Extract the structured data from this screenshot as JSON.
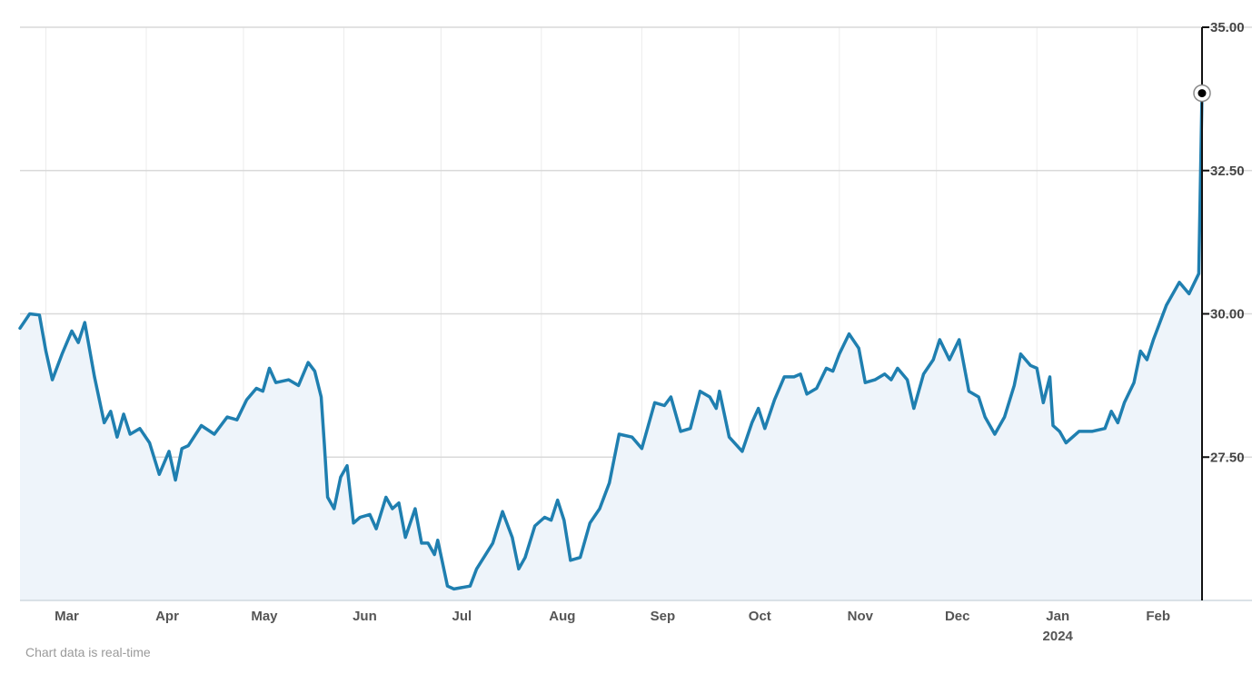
{
  "chart_data": {
    "type": "area",
    "title": "",
    "xlabel": "",
    "ylabel": "",
    "ylim": [
      25,
      35
    ],
    "xlim": [
      "2023-02-21",
      "2024-02-21"
    ],
    "grid": true,
    "y_axis_position": "right",
    "y_ticks": [
      {
        "value": 27.5,
        "label": "27.50"
      },
      {
        "value": 30,
        "label": "30.00"
      },
      {
        "value": 32.5,
        "label": "32.50"
      },
      {
        "value": 35,
        "label": "35.00"
      }
    ],
    "x_ticks": [
      {
        "date": "2023-03-01",
        "label": "Mar",
        "sublabel": ""
      },
      {
        "date": "2023-04-01",
        "label": "Apr",
        "sublabel": ""
      },
      {
        "date": "2023-05-01",
        "label": "May",
        "sublabel": ""
      },
      {
        "date": "2023-06-01",
        "label": "Jun",
        "sublabel": ""
      },
      {
        "date": "2023-07-01",
        "label": "Jul",
        "sublabel": ""
      },
      {
        "date": "2023-08-01",
        "label": "Aug",
        "sublabel": ""
      },
      {
        "date": "2023-09-01",
        "label": "Sep",
        "sublabel": ""
      },
      {
        "date": "2023-10-01",
        "label": "Oct",
        "sublabel": ""
      },
      {
        "date": "2023-11-01",
        "label": "Nov",
        "sublabel": ""
      },
      {
        "date": "2023-12-01",
        "label": "Dec",
        "sublabel": ""
      },
      {
        "date": "2024-01-01",
        "label": "Jan",
        "sublabel": "2024"
      },
      {
        "date": "2024-02-01",
        "label": "Feb",
        "sublabel": ""
      }
    ],
    "series": [
      {
        "color": "#1f7fb0",
        "fill": "#eef4fa",
        "points": [
          [
            "2023-02-21",
            29.75
          ],
          [
            "2023-02-24",
            30.0
          ],
          [
            "2023-02-27",
            29.98
          ],
          [
            "2023-03-01",
            29.35
          ],
          [
            "2023-03-03",
            28.85
          ],
          [
            "2023-03-06",
            29.3
          ],
          [
            "2023-03-09",
            29.7
          ],
          [
            "2023-03-11",
            29.5
          ],
          [
            "2023-03-13",
            29.85
          ],
          [
            "2023-03-16",
            28.9
          ],
          [
            "2023-03-19",
            28.1
          ],
          [
            "2023-03-21",
            28.3
          ],
          [
            "2023-03-23",
            27.85
          ],
          [
            "2023-03-25",
            28.25
          ],
          [
            "2023-03-27",
            27.9
          ],
          [
            "2023-03-30",
            28.0
          ],
          [
            "2023-04-02",
            27.75
          ],
          [
            "2023-04-05",
            27.2
          ],
          [
            "2023-04-08",
            27.6
          ],
          [
            "2023-04-10",
            27.1
          ],
          [
            "2023-04-12",
            27.65
          ],
          [
            "2023-04-14",
            27.7
          ],
          [
            "2023-04-18",
            28.05
          ],
          [
            "2023-04-22",
            27.9
          ],
          [
            "2023-04-26",
            28.2
          ],
          [
            "2023-04-29",
            28.15
          ],
          [
            "2023-05-02",
            28.5
          ],
          [
            "2023-05-05",
            28.7
          ],
          [
            "2023-05-07",
            28.65
          ],
          [
            "2023-05-09",
            29.05
          ],
          [
            "2023-05-11",
            28.8
          ],
          [
            "2023-05-15",
            28.85
          ],
          [
            "2023-05-18",
            28.75
          ],
          [
            "2023-05-21",
            29.15
          ],
          [
            "2023-05-23",
            29.0
          ],
          [
            "2023-05-25",
            28.55
          ],
          [
            "2023-05-26",
            27.7
          ],
          [
            "2023-05-27",
            26.8
          ],
          [
            "2023-05-29",
            26.6
          ],
          [
            "2023-05-31",
            27.15
          ],
          [
            "2023-06-02",
            27.35
          ],
          [
            "2023-06-04",
            26.35
          ],
          [
            "2023-06-06",
            26.45
          ],
          [
            "2023-06-09",
            26.5
          ],
          [
            "2023-06-11",
            26.25
          ],
          [
            "2023-06-14",
            26.8
          ],
          [
            "2023-06-16",
            26.6
          ],
          [
            "2023-06-18",
            26.7
          ],
          [
            "2023-06-20",
            26.1
          ],
          [
            "2023-06-23",
            26.6
          ],
          [
            "2023-06-25",
            26.0
          ],
          [
            "2023-06-27",
            26.0
          ],
          [
            "2023-06-29",
            25.8
          ],
          [
            "2023-06-30",
            26.05
          ],
          [
            "2023-07-03",
            25.25
          ],
          [
            "2023-07-05",
            25.2
          ],
          [
            "2023-07-10",
            25.25
          ],
          [
            "2023-07-12",
            25.55
          ],
          [
            "2023-07-17",
            26.0
          ],
          [
            "2023-07-20",
            26.55
          ],
          [
            "2023-07-23",
            26.1
          ],
          [
            "2023-07-25",
            25.55
          ],
          [
            "2023-07-27",
            25.75
          ],
          [
            "2023-07-30",
            26.3
          ],
          [
            "2023-08-02",
            26.45
          ],
          [
            "2023-08-04",
            26.4
          ],
          [
            "2023-08-06",
            26.75
          ],
          [
            "2023-08-08",
            26.4
          ],
          [
            "2023-08-10",
            25.7
          ],
          [
            "2023-08-13",
            25.75
          ],
          [
            "2023-08-16",
            26.35
          ],
          [
            "2023-08-19",
            26.6
          ],
          [
            "2023-08-22",
            27.05
          ],
          [
            "2023-08-25",
            27.9
          ],
          [
            "2023-08-29",
            27.85
          ],
          [
            "2023-09-01",
            27.65
          ],
          [
            "2023-09-05",
            28.45
          ],
          [
            "2023-09-08",
            28.4
          ],
          [
            "2023-09-10",
            28.55
          ],
          [
            "2023-09-13",
            27.95
          ],
          [
            "2023-09-16",
            28.0
          ],
          [
            "2023-09-19",
            28.65
          ],
          [
            "2023-09-22",
            28.55
          ],
          [
            "2023-09-24",
            28.35
          ],
          [
            "2023-09-25",
            28.65
          ],
          [
            "2023-09-28",
            27.85
          ],
          [
            "2023-10-02",
            27.6
          ],
          [
            "2023-10-05",
            28.1
          ],
          [
            "2023-10-07",
            28.35
          ],
          [
            "2023-10-09",
            28.0
          ],
          [
            "2023-10-12",
            28.5
          ],
          [
            "2023-10-15",
            28.9
          ],
          [
            "2023-10-18",
            28.9
          ],
          [
            "2023-10-20",
            28.95
          ],
          [
            "2023-10-22",
            28.6
          ],
          [
            "2023-10-25",
            28.7
          ],
          [
            "2023-10-28",
            29.05
          ],
          [
            "2023-10-30",
            29.0
          ],
          [
            "2023-11-01",
            29.3
          ],
          [
            "2023-11-04",
            29.65
          ],
          [
            "2023-11-07",
            29.4
          ],
          [
            "2023-11-09",
            28.8
          ],
          [
            "2023-11-12",
            28.85
          ],
          [
            "2023-11-15",
            28.95
          ],
          [
            "2023-11-17",
            28.85
          ],
          [
            "2023-11-19",
            29.05
          ],
          [
            "2023-11-22",
            28.85
          ],
          [
            "2023-11-24",
            28.35
          ],
          [
            "2023-11-27",
            28.95
          ],
          [
            "2023-11-30",
            29.2
          ],
          [
            "2023-12-02",
            29.55
          ],
          [
            "2023-12-05",
            29.2
          ],
          [
            "2023-12-08",
            29.55
          ],
          [
            "2023-12-11",
            28.65
          ],
          [
            "2023-12-14",
            28.55
          ],
          [
            "2023-12-16",
            28.2
          ],
          [
            "2023-12-19",
            27.9
          ],
          [
            "2023-12-22",
            28.2
          ],
          [
            "2023-12-25",
            28.75
          ],
          [
            "2023-12-27",
            29.3
          ],
          [
            "2023-12-30",
            29.1
          ],
          [
            "2024-01-01",
            29.05
          ],
          [
            "2024-01-03",
            28.45
          ],
          [
            "2024-01-05",
            28.9
          ],
          [
            "2024-01-06",
            28.05
          ],
          [
            "2024-01-08",
            27.95
          ],
          [
            "2024-01-10",
            27.75
          ],
          [
            "2024-01-14",
            27.95
          ],
          [
            "2024-01-18",
            27.95
          ],
          [
            "2024-01-22",
            28.0
          ],
          [
            "2024-01-24",
            28.3
          ],
          [
            "2024-01-26",
            28.1
          ],
          [
            "2024-01-28",
            28.45
          ],
          [
            "2024-01-31",
            28.8
          ],
          [
            "2024-02-02",
            29.35
          ],
          [
            "2024-02-04",
            29.2
          ],
          [
            "2024-02-06",
            29.55
          ],
          [
            "2024-02-10",
            30.15
          ],
          [
            "2024-02-14",
            30.55
          ],
          [
            "2024-02-17",
            30.35
          ],
          [
            "2024-02-20",
            30.7
          ],
          [
            "2024-02-21",
            33.85
          ]
        ]
      }
    ],
    "last_point_marker": true
  },
  "footnote": "Chart data is real-time"
}
